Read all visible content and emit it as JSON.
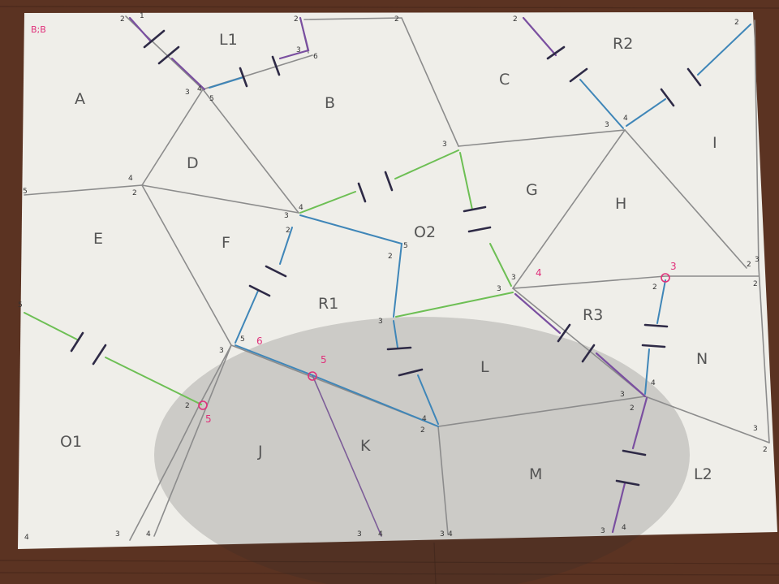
{
  "corner_label": "B;B",
  "regions": [
    {
      "id": "A",
      "label": "A"
    },
    {
      "id": "L1",
      "label": "L1"
    },
    {
      "id": "B",
      "label": "B"
    },
    {
      "id": "C",
      "label": "C"
    },
    {
      "id": "R2",
      "label": "R2"
    },
    {
      "id": "I",
      "label": "I"
    },
    {
      "id": "D",
      "label": "D"
    },
    {
      "id": "E",
      "label": "E"
    },
    {
      "id": "F",
      "label": "F"
    },
    {
      "id": "G",
      "label": "G"
    },
    {
      "id": "H",
      "label": "H"
    },
    {
      "id": "O2",
      "label": "O2"
    },
    {
      "id": "R1",
      "label": "R1"
    },
    {
      "id": "L",
      "label": "L"
    },
    {
      "id": "R3",
      "label": "R3"
    },
    {
      "id": "N",
      "label": "N"
    },
    {
      "id": "O1",
      "label": "O1"
    },
    {
      "id": "J",
      "label": "J"
    },
    {
      "id": "K",
      "label": "K"
    },
    {
      "id": "M",
      "label": "M"
    },
    {
      "id": "L2",
      "label": "L2"
    }
  ],
  "junction_markers": [
    {
      "id": "m3",
      "label": "3"
    },
    {
      "id": "m4",
      "label": "4"
    },
    {
      "id": "m5a",
      "label": "5"
    },
    {
      "id": "m5b",
      "label": "5"
    },
    {
      "id": "m6",
      "label": "6"
    }
  ],
  "pin_numbers": [
    "1",
    "2",
    "3",
    "4",
    "5",
    "6"
  ]
}
